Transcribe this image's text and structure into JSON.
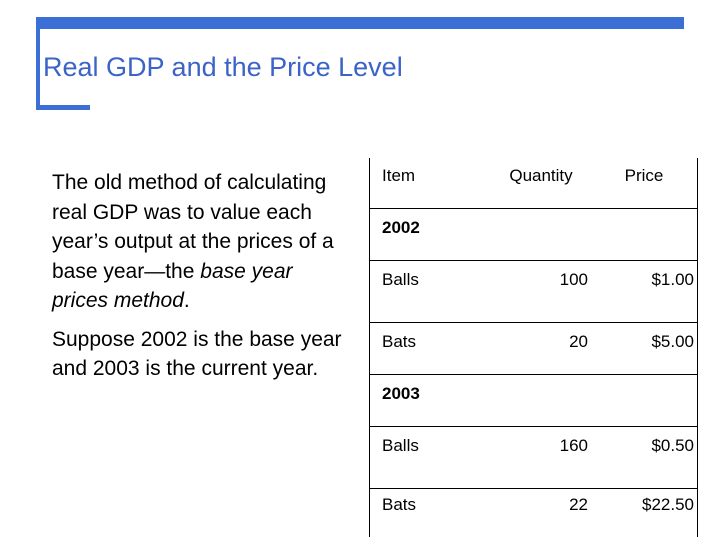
{
  "slide": {
    "title": "Real GDP and the Price Level",
    "body": {
      "p1_intro": "The old method of calculating real GDP was to value each year’s output at the prices of a base year—the ",
      "p1_em": "base year prices method",
      "p1_end": ".",
      "p2": "Suppose 2002 is the base year and 2003 is the current year."
    },
    "table": {
      "headers": {
        "item": "Item",
        "quantity": "Quantity",
        "price": "Price"
      },
      "y2002": {
        "label": "2002",
        "row1": {
          "item": "Balls",
          "quantity": "100",
          "price": "$1.00"
        },
        "row2": {
          "item": "Bats",
          "quantity": "20",
          "price": "$5.00"
        }
      },
      "y2003": {
        "label": "2003",
        "row1": {
          "item": "Balls",
          "quantity": "160",
          "price": "$0.50"
        },
        "row2": {
          "item": "Bats",
          "quantity": "22",
          "price": "$22.50"
        }
      }
    },
    "colors": {
      "accent": "#3b6fd6",
      "title": "#3b63c8"
    }
  }
}
